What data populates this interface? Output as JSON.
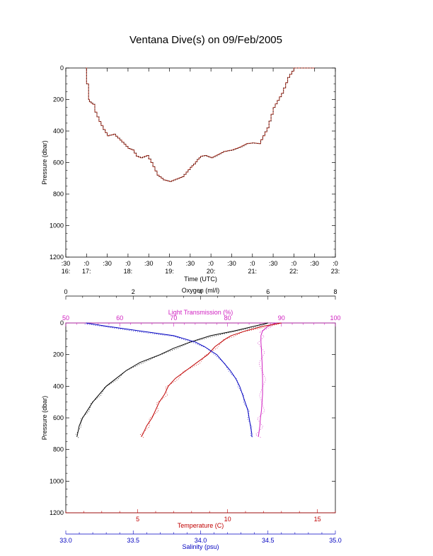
{
  "title": "Ventana Dive(s) on 09/Feb/2005",
  "chart_data": [
    {
      "type": "line",
      "xlabel": "Time (UTC)",
      "ylabel": "Pressure (dbar)",
      "ylim": [
        1200,
        0
      ],
      "yticks": [
        "0",
        "200",
        "400",
        "600",
        "800",
        "1000",
        "1200"
      ],
      "xtick_minutes": [
        ":30",
        ":0",
        ":30",
        ":0",
        ":30",
        ":0",
        ":30",
        ":0",
        ":30",
        ":0",
        ":30",
        ":0",
        ":30",
        ":0"
      ],
      "xtick_hours": [
        "16:",
        "17:",
        "",
        "18:",
        "",
        "19:",
        "",
        "20:",
        "",
        "21:",
        "",
        "22:",
        "",
        "23:"
      ],
      "series": [
        {
          "color": "#b03020",
          "x_hours": [
            16.97,
            17.0,
            17.05,
            17.07,
            17.15,
            17.2,
            17.3,
            17.4,
            17.5,
            17.65,
            17.75,
            17.85,
            18.0,
            18.1,
            18.2,
            18.3,
            18.45,
            18.55,
            18.7,
            18.85,
            19.0,
            19.2,
            19.3,
            19.4,
            19.5,
            19.58,
            19.67,
            19.75,
            19.85,
            20.0,
            20.15,
            20.3,
            20.5,
            20.7,
            20.85,
            21.0,
            21.15,
            21.35,
            21.5,
            21.7,
            21.85,
            22.0,
            22.15,
            22.2,
            22.3,
            22.4,
            22.5
          ],
          "pressure": [
            0,
            100,
            200,
            215,
            230,
            280,
            340,
            390,
            430,
            420,
            445,
            470,
            510,
            520,
            560,
            570,
            555,
            600,
            680,
            710,
            720,
            700,
            690,
            660,
            630,
            610,
            580,
            560,
            555,
            570,
            550,
            530,
            520,
            500,
            480,
            475,
            480,
            380,
            250,
            160,
            60,
            0,
            0,
            0,
            0,
            0,
            0
          ]
        }
      ]
    },
    {
      "type": "line",
      "ylabel": "Pressure (dbar)",
      "ylim": [
        1200,
        0
      ],
      "yticks": [
        "0",
        "200",
        "400",
        "600",
        "800",
        "1000",
        "1200"
      ],
      "axes": {
        "oxygen": {
          "label": "Oxygen (ml/l)",
          "range": [
            0,
            8
          ],
          "ticks": [
            "0",
            "2",
            "4",
            "6",
            "8"
          ],
          "color": "#000000"
        },
        "light": {
          "label": "Light Transmission (%)",
          "range": [
            50,
            100
          ],
          "ticks": [
            "50",
            "60",
            "70",
            "80",
            "90",
            "100"
          ],
          "color": "#d020c0"
        },
        "temperature": {
          "label": "Temperature (C)",
          "range": [
            1,
            16
          ],
          "ticks": [
            "5",
            "10",
            "15"
          ],
          "color": "#c00000"
        },
        "salinity": {
          "label": "Salinity (psu)",
          "range": [
            33.0,
            35.0
          ],
          "ticks": [
            "33.0",
            "33.5",
            "34.0",
            "34.5",
            "35.0"
          ],
          "color": "#0000c0"
        }
      },
      "series": [
        {
          "axis": "oxygen",
          "color": "#000000",
          "pressure": [
            0,
            20,
            50,
            80,
            120,
            160,
            200,
            250,
            300,
            350,
            400,
            450,
            500,
            550,
            600,
            650,
            700,
            720
          ],
          "values": [
            6.0,
            5.6,
            5.0,
            4.3,
            3.7,
            3.2,
            2.8,
            2.2,
            1.8,
            1.5,
            1.2,
            1.0,
            0.8,
            0.65,
            0.5,
            0.4,
            0.35,
            0.33
          ]
        },
        {
          "axis": "light",
          "color": "#d020c0",
          "pressure": [
            0,
            20,
            50,
            80,
            120,
            180,
            250,
            350,
            450,
            550,
            600,
            650,
            700,
            720
          ],
          "values": [
            89.0,
            87.5,
            86.5,
            86.2,
            86.2,
            86.3,
            86.4,
            86.5,
            86.5,
            86.3,
            86.1,
            86.0,
            85.8,
            85.7
          ]
        },
        {
          "axis": "temperature",
          "color": "#c00000",
          "pressure": [
            0,
            20,
            50,
            80,
            100,
            150,
            200,
            250,
            300,
            350,
            400,
            450,
            500,
            550,
            600,
            650,
            700,
            720
          ],
          "values": [
            13.0,
            12.0,
            11.0,
            10.2,
            9.9,
            9.3,
            8.9,
            8.3,
            7.7,
            7.1,
            6.7,
            6.5,
            6.2,
            6.0,
            5.8,
            5.5,
            5.3,
            5.2
          ]
        },
        {
          "axis": "salinity",
          "color": "#0000c0",
          "pressure": [
            0,
            20,
            50,
            80,
            120,
            150,
            200,
            250,
            300,
            350,
            400,
            450,
            500,
            550,
            600,
            650,
            700,
            720
          ],
          "values": [
            33.15,
            33.3,
            33.55,
            33.8,
            33.96,
            34.03,
            34.12,
            34.17,
            34.22,
            34.26,
            34.29,
            34.31,
            34.33,
            34.35,
            34.36,
            34.37,
            34.38,
            34.38
          ]
        }
      ]
    }
  ]
}
